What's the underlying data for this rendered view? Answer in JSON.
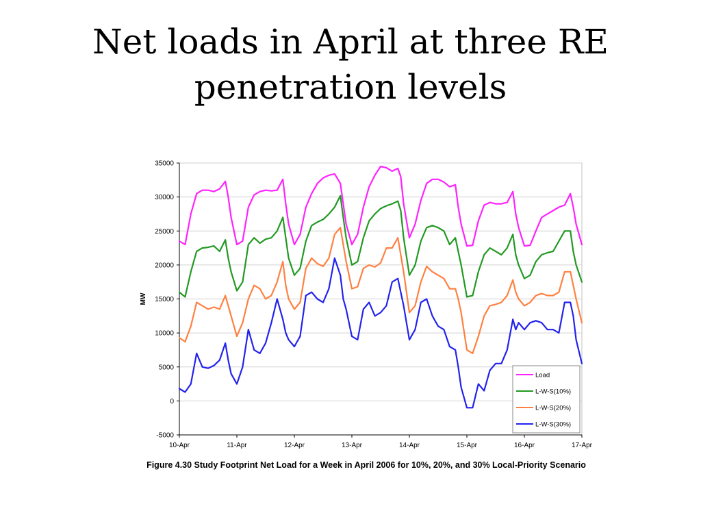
{
  "slide": {
    "title": "Net loads in April at three RE penetration levels",
    "caption": "Figure 4.30 Study Footprint Net Load for a Week in April 2006 for 10%, 20%, and 30% Local-Priority Scenario"
  },
  "chart_data": {
    "type": "line",
    "title": "",
    "xlabel": "",
    "ylabel": "MW",
    "ylim": [
      -5000,
      35000
    ],
    "yticks": [
      35000,
      30000,
      25000,
      20000,
      15000,
      10000,
      5000,
      0,
      -5000
    ],
    "xlim": [
      0,
      7
    ],
    "xtick_labels": [
      "10-Apr",
      "11-Apr",
      "12-Apr",
      "13-Apr",
      "14-Apr",
      "15-Apr",
      "16-Apr",
      "17-Apr"
    ],
    "grid": "horizontal",
    "legend_position": "bottom-right",
    "x": [
      0,
      0.1,
      0.2,
      0.3,
      0.4,
      0.5,
      0.6,
      0.7,
      0.8,
      0.85,
      0.9,
      1.0,
      1.1,
      1.2,
      1.3,
      1.4,
      1.5,
      1.6,
      1.7,
      1.8,
      1.85,
      1.9,
      2.0,
      2.1,
      2.2,
      2.3,
      2.4,
      2.5,
      2.6,
      2.7,
      2.8,
      2.85,
      2.9,
      3.0,
      3.1,
      3.2,
      3.3,
      3.4,
      3.5,
      3.6,
      3.7,
      3.8,
      3.85,
      3.9,
      4.0,
      4.1,
      4.2,
      4.3,
      4.4,
      4.5,
      4.6,
      4.7,
      4.8,
      4.85,
      4.9,
      5.0,
      5.1,
      5.2,
      5.3,
      5.4,
      5.5,
      5.6,
      5.7,
      5.8,
      5.85,
      5.9,
      6.0,
      6.1,
      6.2,
      6.3,
      6.4,
      6.5,
      6.6,
      6.7,
      6.8,
      6.85,
      6.9,
      7.0
    ],
    "series": [
      {
        "name": "Load",
        "color": "#ff22ff",
        "values": [
          23500,
          23000,
          27500,
          30500,
          31000,
          31000,
          30800,
          31200,
          32300,
          30000,
          27000,
          23000,
          23500,
          28500,
          30300,
          30800,
          31000,
          30900,
          31000,
          32600,
          29000,
          26000,
          23000,
          24500,
          28500,
          30500,
          32000,
          32800,
          33200,
          33400,
          32000,
          29000,
          26000,
          23000,
          24500,
          28500,
          31500,
          33200,
          34500,
          34300,
          33800,
          34200,
          33000,
          29000,
          24000,
          26000,
          29500,
          32000,
          32600,
          32600,
          32200,
          31500,
          31800,
          28500,
          26000,
          22800,
          22900,
          26500,
          28800,
          29200,
          29000,
          29000,
          29200,
          30800,
          27500,
          25500,
          22800,
          22900,
          25000,
          27000,
          27500,
          28000,
          28500,
          28800,
          30500,
          28500,
          26000,
          23000
        ]
      },
      {
        "name": "L-W-S(10%)",
        "color": "#229922",
        "values": [
          16000,
          15300,
          19000,
          22000,
          22500,
          22600,
          22800,
          22000,
          23700,
          21000,
          19000,
          16200,
          17500,
          23000,
          24000,
          23200,
          23800,
          24000,
          25000,
          27000,
          24000,
          21000,
          18500,
          19500,
          23500,
          25800,
          26300,
          26700,
          27500,
          28500,
          30200,
          27000,
          24000,
          20000,
          20500,
          24000,
          26500,
          27500,
          28300,
          28700,
          29000,
          29400,
          28000,
          24000,
          18500,
          20000,
          23500,
          25500,
          25800,
          25500,
          25000,
          23000,
          24000,
          22000,
          20000,
          15300,
          15500,
          19000,
          21500,
          22500,
          22000,
          21500,
          22500,
          24500,
          21500,
          20000,
          18000,
          18500,
          20500,
          21500,
          21800,
          22000,
          23500,
          25000,
          25000,
          22000,
          20000,
          17500
        ]
      },
      {
        "name": "L-W-S(20%)",
        "color": "#ff8040",
        "values": [
          9300,
          8700,
          11000,
          14500,
          14000,
          13500,
          13800,
          13500,
          15500,
          14000,
          12500,
          9500,
          11500,
          15000,
          17000,
          16500,
          15000,
          15500,
          17500,
          20500,
          17000,
          15000,
          13500,
          14500,
          19500,
          21000,
          20200,
          19800,
          21000,
          24500,
          25500,
          23000,
          20500,
          16500,
          16800,
          19500,
          20000,
          19700,
          20300,
          22500,
          22500,
          24000,
          21500,
          19000,
          13000,
          14000,
          17500,
          19800,
          19000,
          18500,
          18000,
          16500,
          16500,
          15000,
          13000,
          7500,
          7000,
          9500,
          12500,
          14000,
          14200,
          14500,
          15500,
          17800,
          16000,
          15000,
          14000,
          14500,
          15500,
          15800,
          15500,
          15500,
          16000,
          19000,
          19000,
          17000,
          15000,
          11500
        ]
      },
      {
        "name": "L-W-S(30%)",
        "color": "#2222ee",
        "values": [
          1800,
          1300,
          2500,
          7000,
          5000,
          4800,
          5200,
          6000,
          8500,
          6000,
          4000,
          2500,
          5000,
          10500,
          7500,
          7000,
          8500,
          11500,
          15000,
          12000,
          10000,
          9000,
          8000,
          9500,
          15500,
          16000,
          15000,
          14500,
          16500,
          21000,
          18500,
          15000,
          13500,
          9500,
          9000,
          13500,
          14500,
          12500,
          13000,
          14000,
          17500,
          18000,
          16000,
          14000,
          9000,
          10500,
          14500,
          15000,
          12500,
          11000,
          10500,
          8000,
          7500,
          5000,
          2000,
          -1000,
          -1000,
          2500,
          1500,
          4500,
          5500,
          5500,
          7500,
          12000,
          10500,
          11500,
          10500,
          11500,
          11800,
          11500,
          10500,
          10500,
          10000,
          14500,
          14500,
          12500,
          9000,
          5500
        ]
      }
    ]
  }
}
